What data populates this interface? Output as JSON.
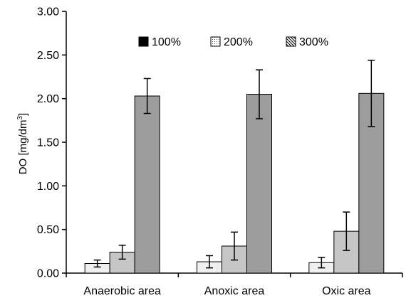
{
  "chart_data": {
    "type": "bar",
    "ylabel": "DO [mg/dm",
    "ylabel_sup": "3",
    "ylabel_end": "]",
    "ylim": [
      0,
      3
    ],
    "yticks": [
      "0.00",
      "0.50",
      "1.00",
      "1.50",
      "2.00",
      "2.50",
      "3.00"
    ],
    "ytick_values": [
      0,
      0.5,
      1.0,
      1.5,
      2.0,
      2.5,
      3.0
    ],
    "categories": [
      "Anaerobic area",
      "Anoxic area",
      "Oxic area"
    ],
    "series": [
      {
        "name": "100%",
        "values": [
          0.11,
          0.13,
          0.12
        ],
        "errors": [
          0.04,
          0.07,
          0.06
        ],
        "color": "#efefef"
      },
      {
        "name": "200%",
        "values": [
          0.24,
          0.31,
          0.48
        ],
        "errors": [
          0.08,
          0.16,
          0.22
        ],
        "color": "#c6c6c6"
      },
      {
        "name": "300%",
        "values": [
          2.03,
          2.05,
          2.06
        ],
        "errors": [
          0.2,
          0.28,
          0.38
        ],
        "color": "#9d9d9d"
      }
    ],
    "legend": {
      "position": "top-center"
    },
    "grid": false
  }
}
